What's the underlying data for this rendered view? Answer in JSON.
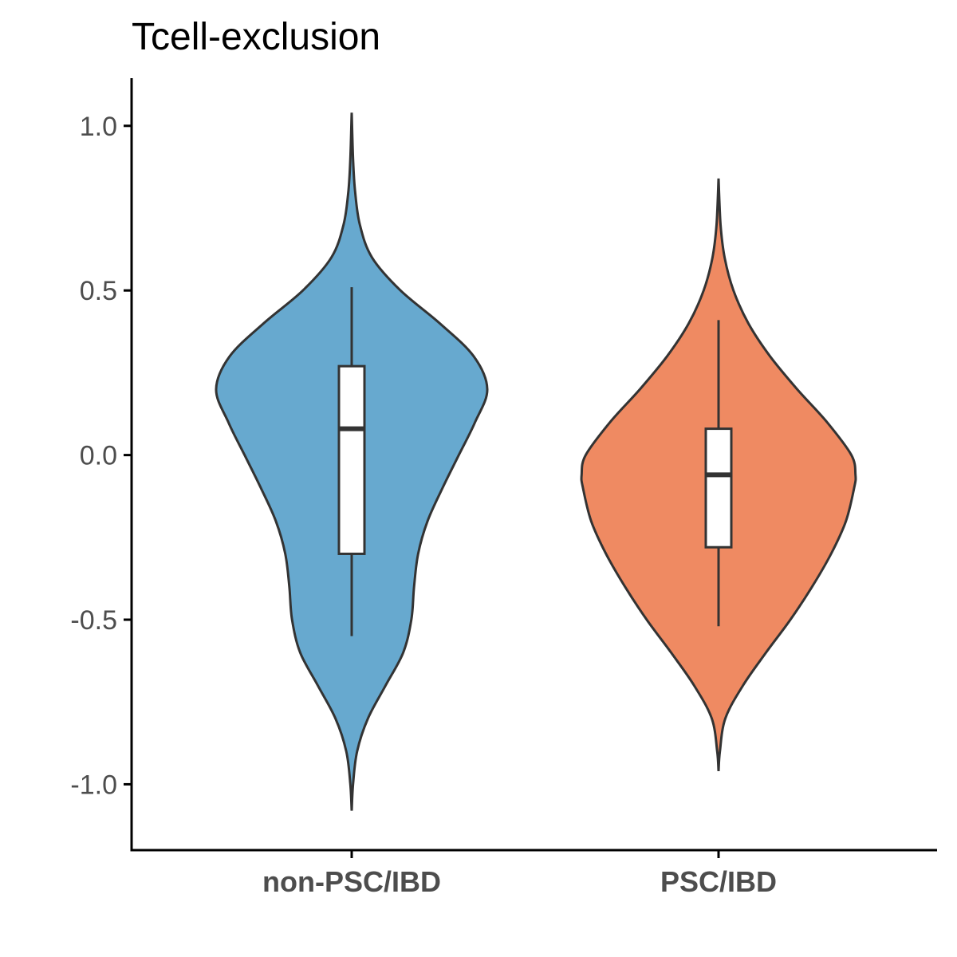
{
  "chart_data": {
    "type": "violin",
    "title": "Tcell-exclusion",
    "xlabel": "",
    "ylabel": "",
    "ylim": [
      -1.2,
      1.14
    ],
    "y_ticks": [
      1.0,
      0.5,
      0.0,
      -0.5,
      -1.0
    ],
    "y_tick_labels": [
      "1.0",
      "0.5",
      "0.0",
      "-0.5",
      "-1.0"
    ],
    "categories": [
      "non-PSC/IBD",
      "PSC/IBD"
    ],
    "grid": false,
    "legend": "none",
    "series": [
      {
        "category": "non-PSC/IBD",
        "color": "#67a9cf",
        "box": {
          "min": -0.55,
          "q1": -0.3,
          "median": 0.08,
          "q3": 0.27,
          "max": 0.51
        },
        "density_range": [
          -1.08,
          1.04
        ],
        "density_profile": [
          {
            "y": -1.08,
            "w": 0.0
          },
          {
            "y": -1.0,
            "w": 0.01
          },
          {
            "y": -0.9,
            "w": 0.04
          },
          {
            "y": -0.8,
            "w": 0.12
          },
          {
            "y": -0.7,
            "w": 0.25
          },
          {
            "y": -0.6,
            "w": 0.38
          },
          {
            "y": -0.5,
            "w": 0.44
          },
          {
            "y": -0.4,
            "w": 0.46
          },
          {
            "y": -0.3,
            "w": 0.49
          },
          {
            "y": -0.2,
            "w": 0.56
          },
          {
            "y": -0.1,
            "w": 0.67
          },
          {
            "y": 0.0,
            "w": 0.79
          },
          {
            "y": 0.1,
            "w": 0.91
          },
          {
            "y": 0.2,
            "w": 1.0
          },
          {
            "y": 0.3,
            "w": 0.9
          },
          {
            "y": 0.4,
            "w": 0.65
          },
          {
            "y": 0.5,
            "w": 0.36
          },
          {
            "y": 0.6,
            "w": 0.15
          },
          {
            "y": 0.7,
            "w": 0.06
          },
          {
            "y": 0.8,
            "w": 0.025
          },
          {
            "y": 0.9,
            "w": 0.01
          },
          {
            "y": 1.04,
            "w": 0.0
          }
        ]
      },
      {
        "category": "PSC/IBD",
        "color": "#ef8a62",
        "box": {
          "min": -0.52,
          "q1": -0.28,
          "median": -0.06,
          "q3": 0.08,
          "max": 0.41
        },
        "density_range": [
          -0.96,
          0.84
        ],
        "density_profile": [
          {
            "y": -0.96,
            "w": 0.0
          },
          {
            "y": -0.9,
            "w": 0.01
          },
          {
            "y": -0.8,
            "w": 0.05
          },
          {
            "y": -0.7,
            "w": 0.18
          },
          {
            "y": -0.6,
            "w": 0.35
          },
          {
            "y": -0.5,
            "w": 0.53
          },
          {
            "y": -0.4,
            "w": 0.69
          },
          {
            "y": -0.3,
            "w": 0.83
          },
          {
            "y": -0.2,
            "w": 0.94
          },
          {
            "y": -0.1,
            "w": 1.0
          },
          {
            "y": -0.06,
            "w": 1.01
          },
          {
            "y": 0.0,
            "w": 0.98
          },
          {
            "y": 0.1,
            "w": 0.8
          },
          {
            "y": 0.2,
            "w": 0.58
          },
          {
            "y": 0.3,
            "w": 0.38
          },
          {
            "y": 0.4,
            "w": 0.22
          },
          {
            "y": 0.5,
            "w": 0.11
          },
          {
            "y": 0.6,
            "w": 0.045
          },
          {
            "y": 0.7,
            "w": 0.015
          },
          {
            "y": 0.84,
            "w": 0.0
          }
        ]
      }
    ],
    "colors": {
      "outline": "#333333",
      "axis": "#000000",
      "tick_label": "#4d4d4d",
      "box_fill": "#ffffff"
    }
  }
}
